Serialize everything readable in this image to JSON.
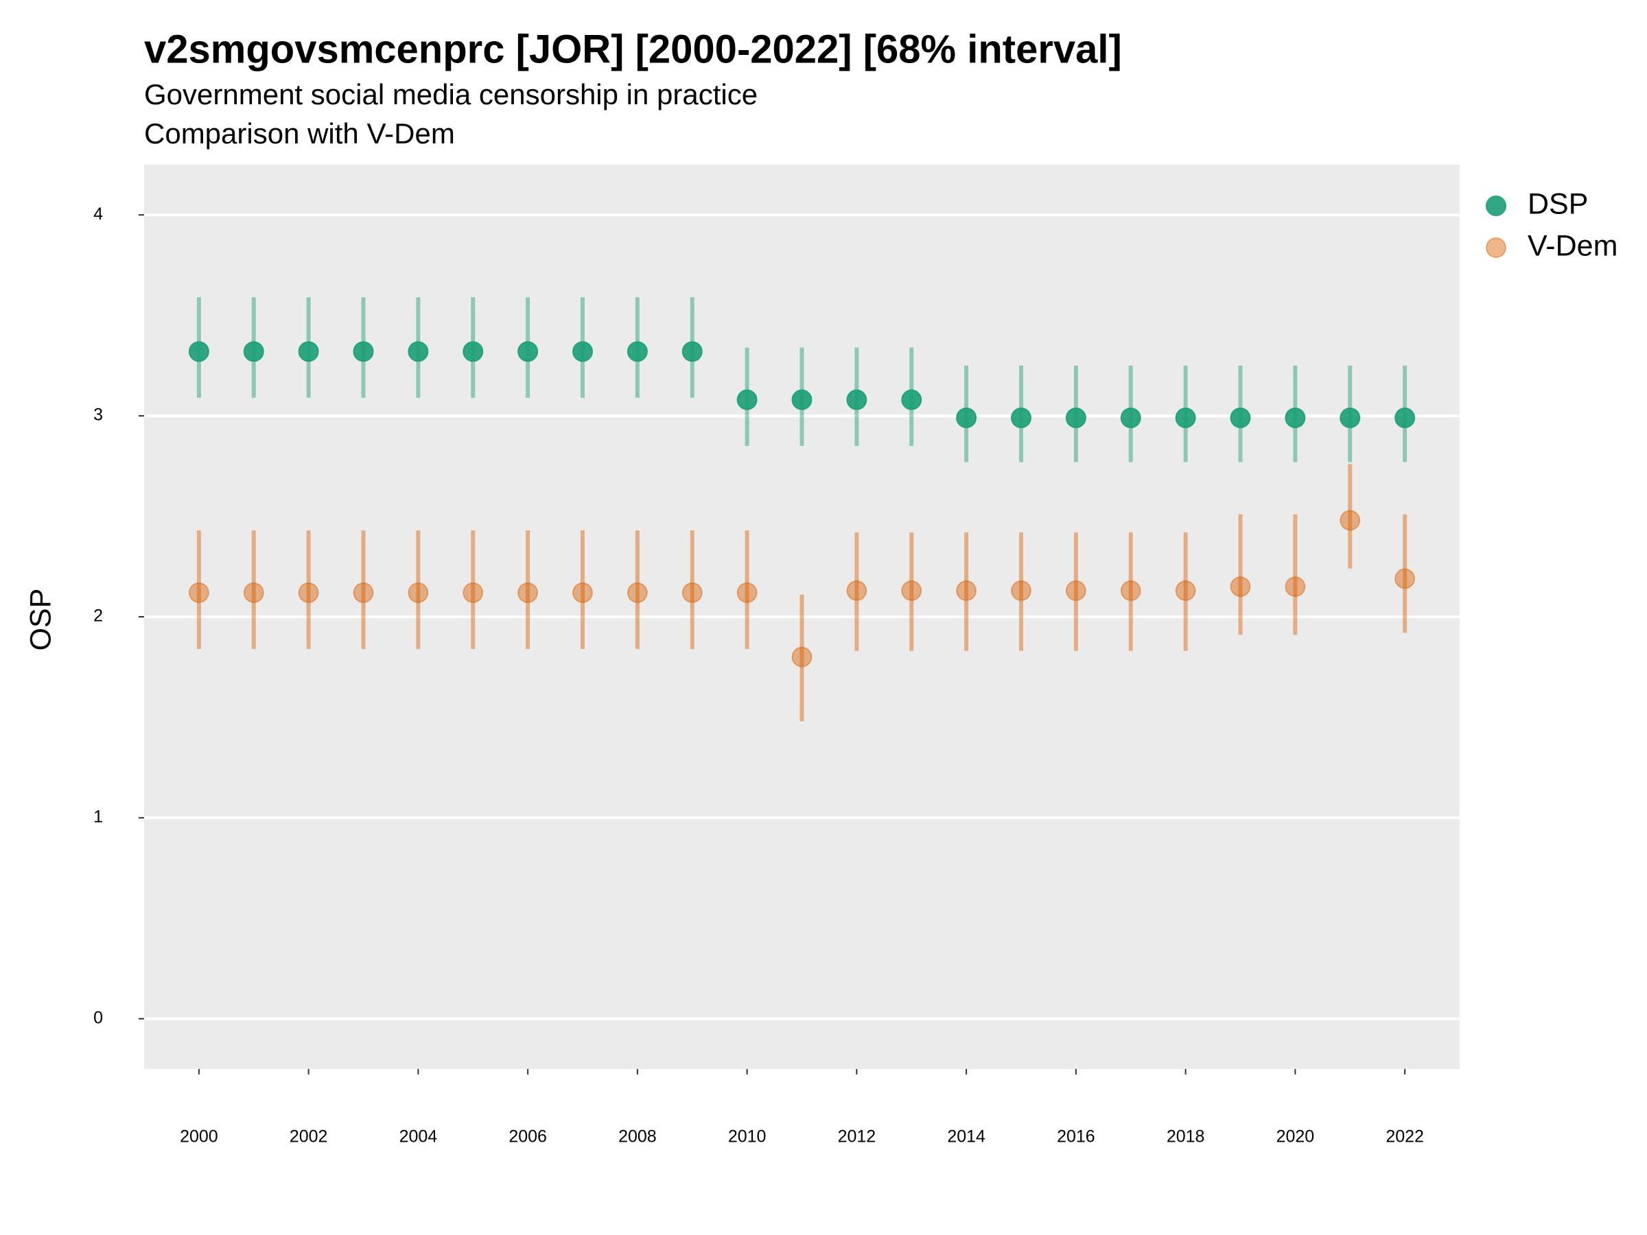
{
  "chart_data": {
    "type": "pointrange",
    "title": "v2smgovsmcenprc [JOR] [2000-2022] [68% interval]",
    "subtitle": [
      "Government social media censorship in practice",
      "Comparison with V-Dem"
    ],
    "ylabel": "OSP",
    "x": [
      2000,
      2001,
      2002,
      2003,
      2004,
      2005,
      2006,
      2007,
      2008,
      2009,
      2010,
      2011,
      2012,
      2013,
      2014,
      2015,
      2016,
      2017,
      2018,
      2019,
      2020,
      2021,
      2022
    ],
    "xlim": [
      1999,
      2023
    ],
    "xticks": [
      2000,
      2002,
      2004,
      2006,
      2008,
      2010,
      2012,
      2014,
      2016,
      2018,
      2020,
      2022
    ],
    "ylim": [
      -0.25,
      4.25
    ],
    "yticks": [
      0,
      1,
      2,
      3,
      4
    ],
    "grid": true,
    "legend": "right",
    "series": [
      {
        "name": "DSP",
        "color": "#1b9e77",
        "values": [
          3.32,
          3.32,
          3.32,
          3.32,
          3.32,
          3.32,
          3.32,
          3.32,
          3.32,
          3.32,
          3.08,
          3.08,
          3.08,
          3.08,
          2.99,
          2.99,
          2.99,
          2.99,
          2.99,
          2.99,
          2.99,
          2.99,
          2.99
        ],
        "lower": [
          3.09,
          3.09,
          3.09,
          3.09,
          3.09,
          3.09,
          3.09,
          3.09,
          3.09,
          3.09,
          2.85,
          2.85,
          2.85,
          2.85,
          2.77,
          2.77,
          2.77,
          2.77,
          2.77,
          2.77,
          2.77,
          2.77,
          2.77
        ],
        "upper": [
          3.59,
          3.59,
          3.59,
          3.59,
          3.59,
          3.59,
          3.59,
          3.59,
          3.59,
          3.59,
          3.34,
          3.34,
          3.34,
          3.34,
          3.25,
          3.25,
          3.25,
          3.25,
          3.25,
          3.25,
          3.25,
          3.25,
          3.25
        ]
      },
      {
        "name": "V-Dem",
        "color": "#d95f02",
        "values": [
          2.12,
          2.12,
          2.12,
          2.12,
          2.12,
          2.12,
          2.12,
          2.12,
          2.12,
          2.12,
          2.12,
          1.8,
          2.13,
          2.13,
          2.13,
          2.13,
          2.13,
          2.13,
          2.13,
          2.15,
          2.15,
          2.48,
          2.19
        ],
        "lower": [
          1.84,
          1.84,
          1.84,
          1.84,
          1.84,
          1.84,
          1.84,
          1.84,
          1.84,
          1.84,
          1.84,
          1.48,
          1.83,
          1.83,
          1.83,
          1.83,
          1.83,
          1.83,
          1.83,
          1.91,
          1.91,
          2.24,
          1.92
        ],
        "upper": [
          2.43,
          2.43,
          2.43,
          2.43,
          2.43,
          2.43,
          2.43,
          2.43,
          2.43,
          2.43,
          2.43,
          2.11,
          2.42,
          2.42,
          2.42,
          2.42,
          2.42,
          2.42,
          2.42,
          2.51,
          2.51,
          2.76,
          2.51
        ]
      }
    ]
  }
}
